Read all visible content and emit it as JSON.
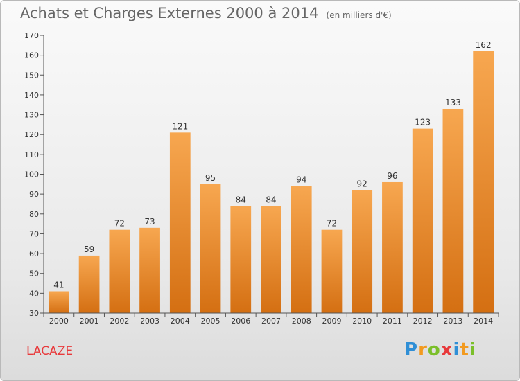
{
  "chart_data": {
    "type": "bar",
    "title": "Achats et Charges Externes 2000 à 2014",
    "subtitle": "(en milliers d'€)",
    "categories": [
      "2000",
      "2001",
      "2002",
      "2003",
      "2004",
      "2005",
      "2006",
      "2007",
      "2008",
      "2009",
      "2010",
      "2011",
      "2012",
      "2013",
      "2014"
    ],
    "values": [
      41,
      59,
      72,
      73,
      121,
      95,
      84,
      84,
      94,
      72,
      92,
      96,
      123,
      133,
      162
    ],
    "ylim": [
      30,
      170
    ],
    "yticks": [
      30,
      40,
      50,
      60,
      70,
      80,
      90,
      100,
      110,
      120,
      130,
      140,
      150,
      160,
      170
    ],
    "xlabel": "",
    "ylabel": "",
    "grid": false,
    "legend": "none",
    "bar_color_top": "#f7a750",
    "bar_color_bottom": "#d46f12"
  },
  "location": {
    "name": "LACAZE",
    "color": "#e8393b"
  },
  "logo": {
    "text": "Proxiti",
    "letters": [
      {
        "char": "P",
        "color": "#2f8fd6"
      },
      {
        "char": "r",
        "color": "#f29a1f"
      },
      {
        "char": "o",
        "color": "#7bbf2a"
      },
      {
        "char": "x",
        "color": "#e8393b"
      },
      {
        "char": "i",
        "color": "#2f8fd6"
      },
      {
        "char": "t",
        "color": "#f29a1f"
      },
      {
        "char": "i",
        "color": "#7bbf2a"
      }
    ]
  }
}
